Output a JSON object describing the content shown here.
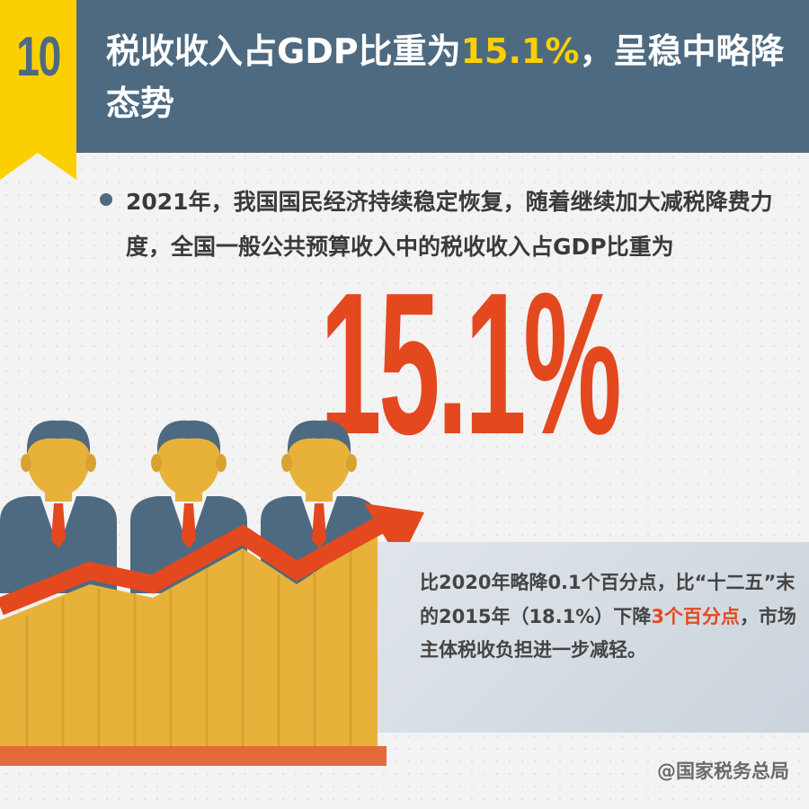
{
  "badge": {
    "number": "10"
  },
  "header": {
    "title_before": "税收收入占GDP比重为",
    "title_highlight": "15.1%",
    "title_after": "，呈稳中略降态势"
  },
  "intro": {
    "text": "2021年，我国国民经济持续稳定恢复，随着继续加大减税降费力度，全国一般公共预算收入中的税收收入占GDP比重为"
  },
  "big_figure": "15.1%",
  "note": {
    "part1": "比2020年略降0.1个百分点，比“十二五”末的2015年（18.1%）下降",
    "highlight": "3个百分点",
    "part2": "，市场主体税收负担进一步减轻。"
  },
  "credit": "@国家税务总局",
  "colors": {
    "header": "#4e6a80",
    "badge": "#fcd000",
    "accent": "#e4481f",
    "bars": "#e8b23a"
  },
  "illustration": {
    "icons": [
      "people-icon",
      "rising-arrow-icon",
      "bar-chart-icon"
    ]
  }
}
